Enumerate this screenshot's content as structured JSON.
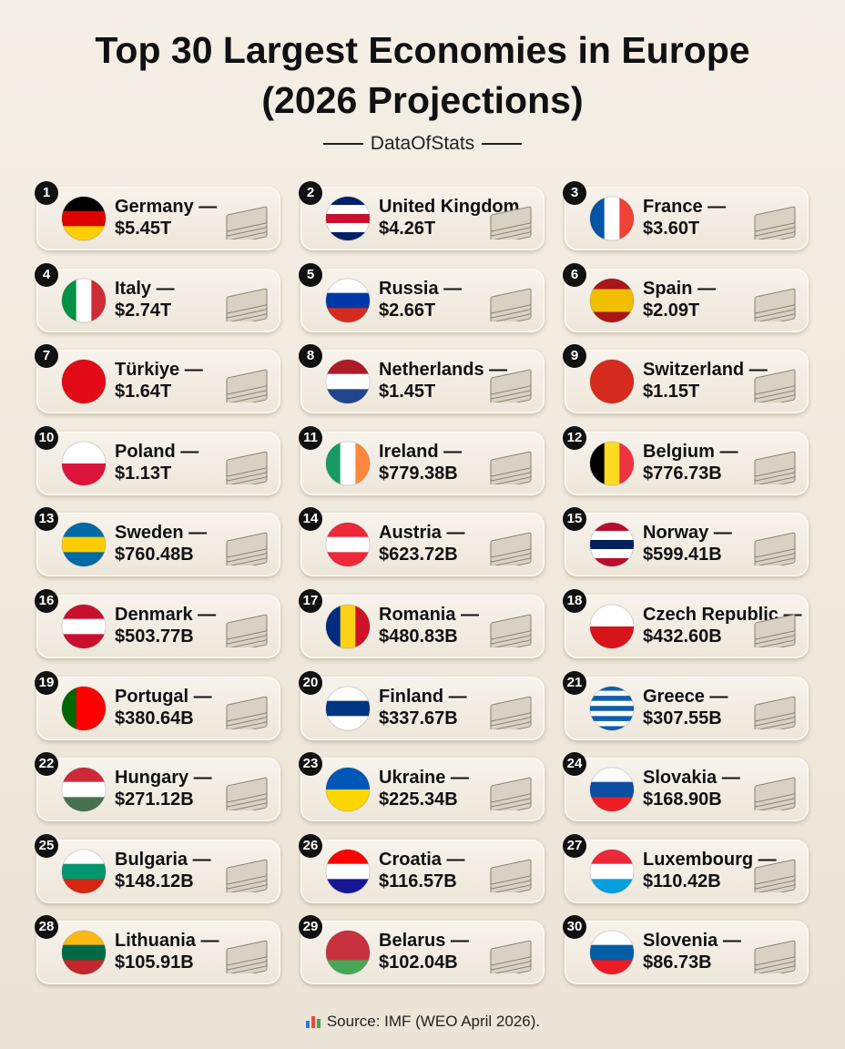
{
  "header": {
    "title": "Top 30 Largest Economies in Europe (2026 Projections)",
    "subtitle": "DataOfStats"
  },
  "items": [
    {
      "rank": 1,
      "name": "Germany —",
      "value": "$5.45T",
      "flag": [
        "#000000",
        "#dd0000",
        "#ffce00"
      ],
      "flag_stripes": "horizontal"
    },
    {
      "rank": 2,
      "name": "United Kingdom",
      "value": "$4.26T",
      "flag": [
        "#012169",
        "#ffffff",
        "#c8102e",
        "#ffffff",
        "#012169"
      ],
      "flag_stripes": "horizontal"
    },
    {
      "rank": 3,
      "name": "France —",
      "value": "$3.60T",
      "flag": [
        "#0055a4",
        "#ffffff",
        "#ef4135"
      ],
      "flag_stripes": "vertical"
    },
    {
      "rank": 4,
      "name": "Italy —",
      "value": "$2.74T",
      "flag": [
        "#009246",
        "#ffffff",
        "#ce2b37"
      ],
      "flag_stripes": "vertical"
    },
    {
      "rank": 5,
      "name": "Russia —",
      "value": "$2.66T",
      "flag": [
        "#ffffff",
        "#0039a6",
        "#d52b1e"
      ],
      "flag_stripes": "horizontal"
    },
    {
      "rank": 6,
      "name": "Spain —",
      "value": "$2.09T",
      "flag": [
        "#aa151b",
        "#f1bf00",
        "#f1bf00",
        "#aa151b"
      ],
      "flag_stripes": "horizontal"
    },
    {
      "rank": 7,
      "name": "Türkiye —",
      "value": "$1.64T",
      "flag": [
        "#e30a17"
      ],
      "flag_stripes": "horizontal"
    },
    {
      "rank": 8,
      "name": "Netherlands —",
      "value": "$1.45T",
      "flag": [
        "#ae1c28",
        "#ffffff",
        "#21468b"
      ],
      "flag_stripes": "horizontal"
    },
    {
      "rank": 9,
      "name": "Switzerland —",
      "value": "$1.15T",
      "flag": [
        "#d52b1e"
      ],
      "flag_stripes": "horizontal"
    },
    {
      "rank": 10,
      "name": "Poland —",
      "value": "$1.13T",
      "flag": [
        "#ffffff",
        "#dc143c"
      ],
      "flag_stripes": "horizontal"
    },
    {
      "rank": 11,
      "name": "Ireland —",
      "value": "$779.38B",
      "flag": [
        "#169b62",
        "#ffffff",
        "#ff883e"
      ],
      "flag_stripes": "vertical"
    },
    {
      "rank": 12,
      "name": "Belgium —",
      "value": "$776.73B",
      "flag": [
        "#000000",
        "#fdda24",
        "#ef3340"
      ],
      "flag_stripes": "vertical"
    },
    {
      "rank": 13,
      "name": "Sweden —",
      "value": "$760.48B",
      "flag": [
        "#006aa7",
        "#fecc00",
        "#006aa7"
      ],
      "flag_stripes": "horizontal"
    },
    {
      "rank": 14,
      "name": "Austria —",
      "value": "$623.72B",
      "flag": [
        "#ed2939",
        "#ffffff",
        "#ed2939"
      ],
      "flag_stripes": "horizontal"
    },
    {
      "rank": 15,
      "name": "Norway —",
      "value": "$599.41B",
      "flag": [
        "#ba0c2f",
        "#ffffff",
        "#00205b",
        "#ffffff",
        "#ba0c2f"
      ],
      "flag_stripes": "horizontal"
    },
    {
      "rank": 16,
      "name": "Denmark —",
      "value": "$503.77B",
      "flag": [
        "#c8102e",
        "#ffffff",
        "#c8102e"
      ],
      "flag_stripes": "horizontal"
    },
    {
      "rank": 17,
      "name": "Romania —",
      "value": "$480.83B",
      "flag": [
        "#002b7f",
        "#fcd116",
        "#ce1126"
      ],
      "flag_stripes": "vertical"
    },
    {
      "rank": 18,
      "name": "Czech Republic —",
      "value": "$432.60B",
      "flag": [
        "#ffffff",
        "#d7141a"
      ],
      "flag_stripes": "horizontal"
    },
    {
      "rank": 19,
      "name": "Portugal —",
      "value": "$380.64B",
      "flag": [
        "#006600",
        "#ff0000",
        "#ff0000"
      ],
      "flag_stripes": "vertical"
    },
    {
      "rank": 20,
      "name": "Finland —",
      "value": "$337.67B",
      "flag": [
        "#ffffff",
        "#003580",
        "#ffffff"
      ],
      "flag_stripes": "horizontal"
    },
    {
      "rank": 21,
      "name": "Greece —",
      "value": "$307.55B",
      "flag": [
        "#0d5eaf",
        "#ffffff",
        "#0d5eaf",
        "#ffffff",
        "#0d5eaf",
        "#ffffff",
        "#0d5eaf",
        "#ffffff",
        "#0d5eaf"
      ],
      "flag_stripes": "horizontal"
    },
    {
      "rank": 22,
      "name": "Hungary —",
      "value": "$271.12B",
      "flag": [
        "#ce2939",
        "#ffffff",
        "#477050"
      ],
      "flag_stripes": "horizontal"
    },
    {
      "rank": 23,
      "name": "Ukraine —",
      "value": "$225.34B",
      "flag": [
        "#0057b7",
        "#ffd700"
      ],
      "flag_stripes": "horizontal"
    },
    {
      "rank": 24,
      "name": "Slovakia —",
      "value": "$168.90B",
      "flag": [
        "#ffffff",
        "#0b4ea2",
        "#ee1c25"
      ],
      "flag_stripes": "horizontal"
    },
    {
      "rank": 25,
      "name": "Bulgaria —",
      "value": "$148.12B",
      "flag": [
        "#ffffff",
        "#00966e",
        "#d62612"
      ],
      "flag_stripes": "horizontal"
    },
    {
      "rank": 26,
      "name": "Croatia —",
      "value": "$116.57B",
      "flag": [
        "#ff0000",
        "#ffffff",
        "#171796"
      ],
      "flag_stripes": "horizontal"
    },
    {
      "rank": 27,
      "name": "Luxembourg —",
      "value": "$110.42B",
      "flag": [
        "#ed2939",
        "#ffffff",
        "#00a1de"
      ],
      "flag_stripes": "horizontal"
    },
    {
      "rank": 28,
      "name": "Lithuania —",
      "value": "$105.91B",
      "flag": [
        "#fdb913",
        "#006a44",
        "#c1272d"
      ],
      "flag_stripes": "horizontal"
    },
    {
      "rank": 29,
      "name": "Belarus —",
      "value": "$102.04B",
      "flag": [
        "#c8313e",
        "#c8313e",
        "#4aa657"
      ],
      "flag_stripes": "horizontal"
    },
    {
      "rank": 30,
      "name": "Slovenia —",
      "value": "$86.73B",
      "flag": [
        "#ffffff",
        "#005da4",
        "#ed1c24"
      ],
      "flag_stripes": "horizontal"
    }
  ],
  "source": "Source: IMF (WEO April 2026)."
}
